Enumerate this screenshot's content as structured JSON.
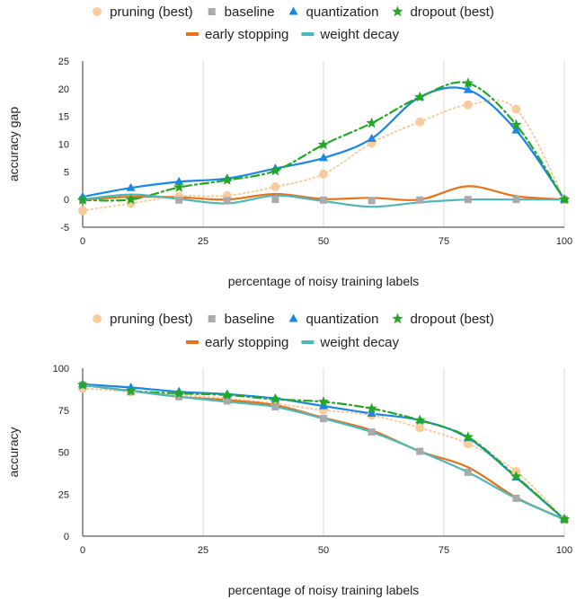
{
  "chart_data": [
    {
      "type": "line",
      "title": "",
      "xlabel": "percentage of noisy training labels",
      "ylabel": "accuracy gap",
      "xlim": [
        0,
        100
      ],
      "ylim": [
        -5,
        25
      ],
      "x_ticks": [
        0,
        25,
        50,
        75,
        100
      ],
      "y_ticks": [
        -5,
        0,
        5,
        10,
        15,
        20,
        25
      ],
      "grid": "vertical",
      "legend": "top",
      "series": [
        {
          "name": "pruning (best)",
          "color": "#f9cb9c",
          "marker": "circle",
          "line": "dotted",
          "x": [
            0,
            10,
            20,
            30,
            40,
            50,
            60,
            70,
            80,
            90,
            100
          ],
          "y": [
            -2,
            -0.7,
            0.6,
            0.7,
            2.3,
            4.6,
            10.2,
            14,
            17.1,
            16.3,
            0
          ]
        },
        {
          "name": "baseline",
          "color": "#aaaaaa",
          "marker": "square",
          "line": "none",
          "x": [
            0,
            20,
            30,
            40,
            50,
            60,
            70,
            80,
            90,
            100
          ],
          "y": [
            0,
            -0.1,
            -0.2,
            0,
            -0.1,
            -0.2,
            -0.1,
            0,
            0,
            0
          ]
        },
        {
          "name": "quantization",
          "color": "#1a87e6",
          "marker": "triangle",
          "line": "solid",
          "x": [
            0,
            10,
            20,
            30,
            40,
            50,
            60,
            70,
            80,
            90,
            100
          ],
          "y": [
            0.5,
            2.1,
            3.2,
            3.8,
            5.6,
            7.5,
            11,
            18.5,
            19.8,
            12.5,
            0
          ]
        },
        {
          "name": "dropout (best)",
          "color": "#22a822",
          "marker": "star",
          "line": "dashdot",
          "x": [
            0,
            10,
            20,
            30,
            40,
            50,
            60,
            70,
            80,
            90,
            100
          ],
          "y": [
            -0.1,
            0,
            2.2,
            3.5,
            5.2,
            9.9,
            13.8,
            18.5,
            21,
            13.5,
            0
          ]
        },
        {
          "name": "early stopping",
          "color": "#e8711a",
          "marker": "none",
          "line": "solid",
          "x": [
            0,
            10,
            20,
            30,
            40,
            50,
            60,
            70,
            80,
            90,
            100
          ],
          "y": [
            0,
            0.5,
            0.4,
            0,
            1,
            0.1,
            0.3,
            0,
            2.4,
            0.6,
            0
          ]
        },
        {
          "name": "weight decay",
          "color": "#4db8bc",
          "marker": "none",
          "line": "solid",
          "x": [
            0,
            10,
            20,
            30,
            40,
            50,
            60,
            70,
            80,
            90,
            100
          ],
          "y": [
            0,
            0.9,
            0.1,
            -0.7,
            0.7,
            -0.3,
            -1.3,
            -0.5,
            0,
            0,
            0
          ]
        }
      ]
    },
    {
      "type": "line",
      "title": "",
      "xlabel": "percentage of noisy training labels",
      "ylabel": "accuracy",
      "xlim": [
        0,
        100
      ],
      "ylim": [
        0,
        100
      ],
      "x_ticks": [
        0,
        25,
        50,
        75,
        100
      ],
      "y_ticks": [
        0,
        25,
        50,
        75,
        100
      ],
      "grid": "vertical",
      "legend": "top",
      "series": [
        {
          "name": "pruning (best)",
          "color": "#f9cb9c",
          "marker": "circle",
          "line": "dotted",
          "x": [
            0,
            10,
            20,
            30,
            40,
            50,
            60,
            70,
            80,
            90,
            100
          ],
          "y": [
            88,
            86,
            84,
            82,
            79,
            75,
            72,
            64.5,
            55,
            38.5,
            10
          ]
        },
        {
          "name": "baseline",
          "color": "#aaaaaa",
          "marker": "square",
          "line": "none",
          "x": [
            0,
            10,
            20,
            30,
            40,
            50,
            60,
            70,
            80,
            90,
            100
          ],
          "y": [
            90,
            86,
            83,
            80.5,
            77,
            70,
            62,
            50.5,
            38,
            22.5,
            10
          ]
        },
        {
          "name": "quantization",
          "color": "#1a87e6",
          "marker": "triangle",
          "line": "solid",
          "x": [
            0,
            10,
            20,
            30,
            40,
            50,
            60,
            70,
            80,
            90,
            100
          ],
          "y": [
            90.5,
            88.5,
            86,
            84.5,
            82,
            77.5,
            73,
            69,
            58.5,
            35,
            10
          ]
        },
        {
          "name": "dropout (best)",
          "color": "#22a822",
          "marker": "star",
          "line": "dashdot",
          "x": [
            0,
            10,
            20,
            30,
            40,
            50,
            60,
            70,
            80,
            90,
            100
          ],
          "y": [
            90,
            86.5,
            85,
            84,
            81.5,
            80,
            76,
            69,
            59,
            35.5,
            10
          ]
        },
        {
          "name": "early stopping",
          "color": "#e8711a",
          "marker": "none",
          "line": "solid",
          "x": [
            0,
            10,
            20,
            30,
            40,
            50,
            60,
            70,
            80,
            90,
            100
          ],
          "y": [
            90,
            86.5,
            83,
            81,
            78,
            70.5,
            63,
            50.5,
            41,
            23,
            10
          ]
        },
        {
          "name": "weight decay",
          "color": "#4db8bc",
          "marker": "none",
          "line": "solid",
          "x": [
            0,
            10,
            20,
            30,
            40,
            50,
            60,
            70,
            80,
            90,
            100
          ],
          "y": [
            90,
            86.5,
            83,
            80,
            77,
            70,
            62,
            50.5,
            38,
            22.5,
            10
          ]
        }
      ]
    }
  ]
}
